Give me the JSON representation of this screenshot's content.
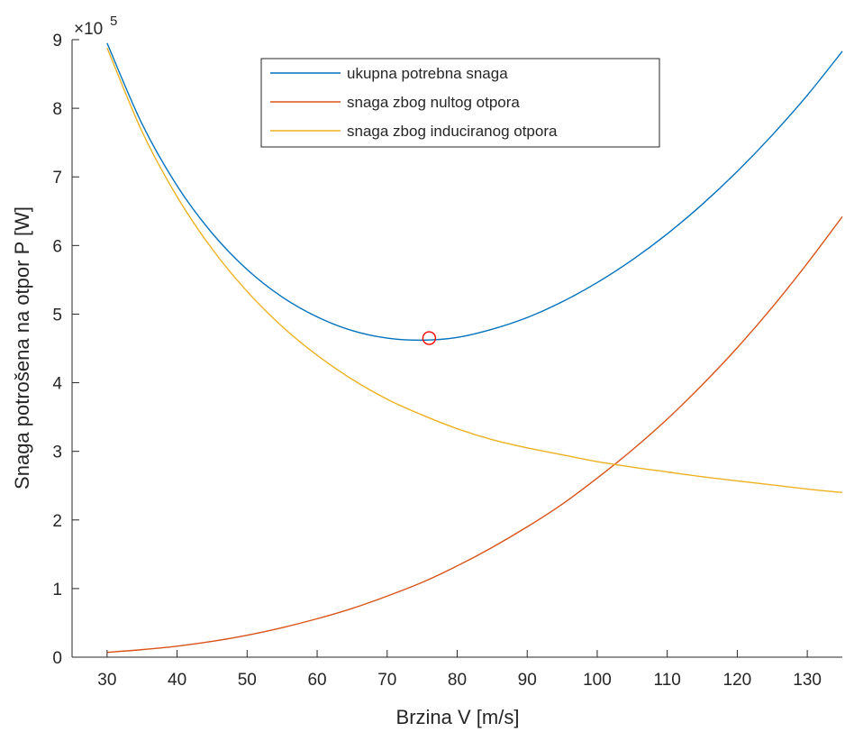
{
  "chart_data": {
    "type": "line",
    "title": "",
    "xlabel": "Brzina V [m/s]",
    "ylabel": "Snaga potrošena na otpor P [W]",
    "y_exponent_base": "×10",
    "y_exponent_power": "5",
    "xlim": [
      25,
      135
    ],
    "ylim": [
      0,
      9
    ],
    "xticks": [
      30,
      40,
      50,
      60,
      70,
      80,
      90,
      100,
      110,
      120,
      130
    ],
    "yticks": [
      0,
      1,
      2,
      3,
      4,
      5,
      6,
      7,
      8,
      9
    ],
    "grid": false,
    "legend_position": "top-center",
    "x": [
      30,
      35,
      40,
      45,
      50,
      55,
      60,
      65,
      70,
      75,
      80,
      85,
      90,
      95,
      100,
      105,
      110,
      115,
      120,
      125,
      130,
      135
    ],
    "series": [
      {
        "name": "ukupna potrebna  snaga",
        "color": "#0072bd",
        "values": [
          8.95,
          7.77,
          6.87,
          6.18,
          5.65,
          5.25,
          4.96,
          4.76,
          4.65,
          4.62,
          4.66,
          4.78,
          4.95,
          5.18,
          5.46,
          5.79,
          6.17,
          6.6,
          7.08,
          7.61,
          8.19,
          8.83
        ]
      },
      {
        "name": "snaga zbog nultog otpora",
        "color": "#d95319",
        "values": [
          0.07,
          0.11,
          0.16,
          0.23,
          0.32,
          0.43,
          0.56,
          0.71,
          0.89,
          1.09,
          1.33,
          1.6,
          1.9,
          2.23,
          2.61,
          3.02,
          3.47,
          3.97,
          4.51,
          5.1,
          5.74,
          6.42
        ]
      },
      {
        "name": "snaga zbog induciranog otpora",
        "color": "#edb120",
        "values": [
          8.88,
          7.66,
          6.71,
          5.95,
          5.33,
          4.82,
          4.4,
          4.05,
          3.76,
          3.53,
          3.33,
          3.17,
          3.05,
          2.95,
          2.85,
          2.77,
          2.7,
          2.63,
          2.57,
          2.51,
          2.45,
          2.4
        ]
      }
    ],
    "marker": {
      "x": 76,
      "y": 4.65,
      "shape": "circle",
      "color": "#ff0000"
    }
  }
}
